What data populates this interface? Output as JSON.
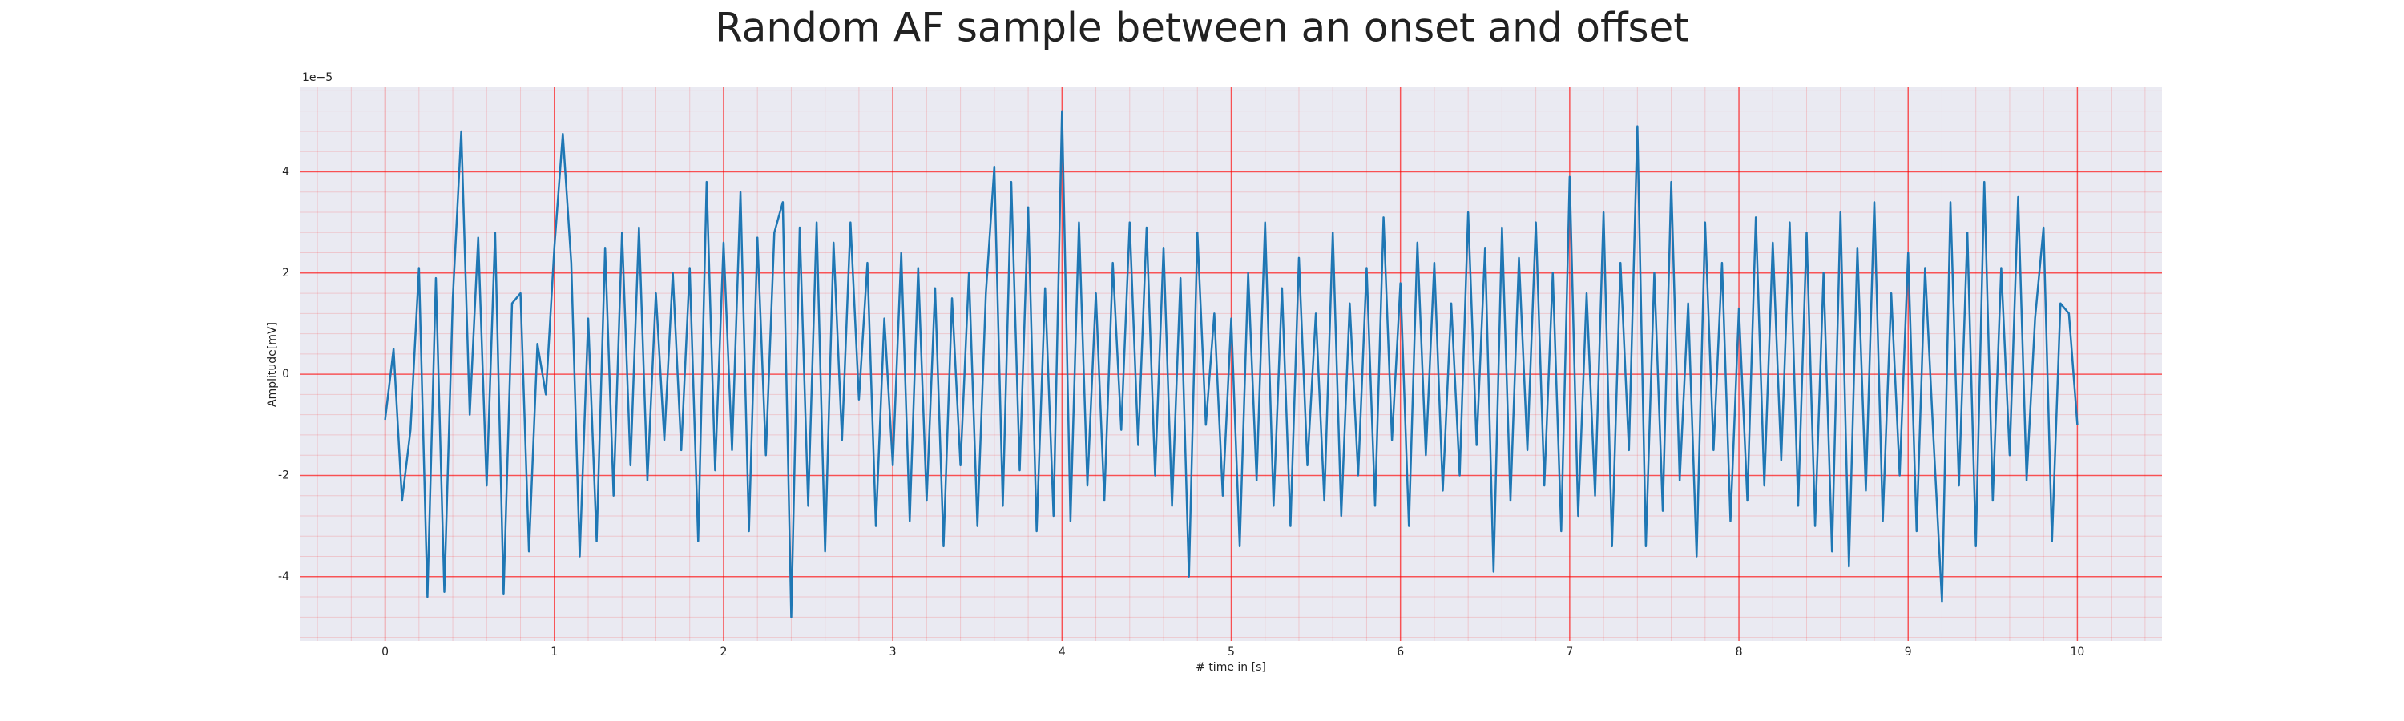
{
  "chart_data": {
    "type": "line",
    "title": "Random AF sample between an onset and offset",
    "xlabel": "# time in [s]",
    "ylabel": "Amplitude[mV]",
    "y_offset_label": "1e−5",
    "color": "#1f77b4",
    "grid": true,
    "grid_color": "#ff0000",
    "minor_grid": true,
    "xlim": [
      -0.5,
      10.5
    ],
    "xticks": [
      0,
      1,
      2,
      3,
      4,
      5,
      6,
      7,
      8,
      9,
      10
    ],
    "ylim": [
      -5.27,
      5.67
    ],
    "yticks": [
      -4,
      -2,
      0,
      2,
      4
    ],
    "x": [
      0,
      0.05,
      0.1,
      0.15,
      0.2,
      0.25,
      0.3,
      0.35,
      0.4,
      0.45,
      0.5,
      0.55,
      0.6,
      0.65,
      0.7,
      0.75,
      0.8,
      0.85,
      0.9,
      0.95,
      1,
      1.05,
      1.1,
      1.15,
      1.2,
      1.25,
      1.3,
      1.35,
      1.4,
      1.45,
      1.5,
      1.55,
      1.6,
      1.65,
      1.7,
      1.75,
      1.8,
      1.85,
      1.9,
      1.95,
      2,
      2.05,
      2.1,
      2.15,
      2.2,
      2.25,
      2.3,
      2.35,
      2.4,
      2.45,
      2.5,
      2.55,
      2.6,
      2.65,
      2.7,
      2.75,
      2.8,
      2.85,
      2.9,
      2.95,
      3,
      3.05,
      3.1,
      3.15,
      3.2,
      3.25,
      3.3,
      3.35,
      3.4,
      3.45,
      3.5,
      3.55,
      3.6,
      3.65,
      3.7,
      3.75,
      3.8,
      3.85,
      3.9,
      3.95,
      4,
      4.05,
      4.1,
      4.15,
      4.2,
      4.25,
      4.3,
      4.35,
      4.4,
      4.45,
      4.5,
      4.55,
      4.6,
      4.65,
      4.7,
      4.75,
      4.8,
      4.85,
      4.9,
      4.95,
      5,
      5.05,
      5.1,
      5.15,
      5.2,
      5.25,
      5.3,
      5.35,
      5.4,
      5.45,
      5.5,
      5.55,
      5.6,
      5.65,
      5.7,
      5.75,
      5.8,
      5.85,
      5.9,
      5.95,
      6,
      6.05,
      6.1,
      6.15,
      6.2,
      6.25,
      6.3,
      6.35,
      6.4,
      6.45,
      6.5,
      6.55,
      6.6,
      6.65,
      6.7,
      6.75,
      6.8,
      6.85,
      6.9,
      6.95,
      7,
      7.05,
      7.1,
      7.15,
      7.2,
      7.25,
      7.3,
      7.35,
      7.4,
      7.45,
      7.5,
      7.55,
      7.6,
      7.65,
      7.7,
      7.75,
      7.8,
      7.85,
      7.9,
      7.95,
      8,
      8.05,
      8.1,
      8.15,
      8.2,
      8.25,
      8.3,
      8.35,
      8.4,
      8.45,
      8.5,
      8.55,
      8.6,
      8.65,
      8.7,
      8.75,
      8.8,
      8.85,
      8.9,
      8.95,
      9,
      9.05,
      9.1,
      9.15,
      9.2,
      9.25,
      9.3,
      9.35,
      9.4,
      9.45,
      9.5,
      9.55,
      9.6,
      9.65,
      9.7,
      9.75,
      9.8,
      9.85,
      9.9,
      9.95,
      10
    ],
    "values": [
      -0.9,
      0.5,
      -2.5,
      -1.1,
      2.1,
      -4.4,
      1.9,
      -4.3,
      1.5,
      4.8,
      -0.8,
      2.7,
      -2.2,
      2.8,
      -4.35,
      1.4,
      1.6,
      -3.5,
      0.6,
      -0.4,
      2.5,
      4.75,
      2.2,
      -3.6,
      1.1,
      -3.3,
      2.5,
      -2.4,
      2.8,
      -1.8,
      2.9,
      -2.1,
      1.6,
      -1.3,
      2.0,
      -1.5,
      2.1,
      -3.3,
      3.8,
      -1.9,
      2.6,
      -1.5,
      3.6,
      -3.1,
      2.7,
      -1.6,
      2.8,
      3.4,
      -4.8,
      2.9,
      -2.6,
      3.0,
      -3.5,
      2.6,
      -1.3,
      3.0,
      -0.5,
      2.2,
      -3.0,
      1.1,
      -1.8,
      2.4,
      -2.9,
      2.1,
      -2.5,
      1.7,
      -3.4,
      1.5,
      -1.8,
      2.0,
      -3.0,
      1.6,
      4.1,
      -2.6,
      3.8,
      -1.9,
      3.3,
      -3.1,
      1.7,
      -2.8,
      5.2,
      -2.9,
      3.0,
      -2.2,
      1.6,
      -2.5,
      2.2,
      -1.1,
      3.0,
      -1.4,
      2.9,
      -2.0,
      2.5,
      -2.6,
      1.9,
      -4.0,
      2.8,
      -1.0,
      1.2,
      -2.4,
      1.1,
      -3.4,
      2.0,
      -2.1,
      3.0,
      -2.6,
      1.7,
      -3.0,
      2.3,
      -1.8,
      1.2,
      -2.5,
      2.8,
      -2.8,
      1.4,
      -2.0,
      2.1,
      -2.6,
      3.1,
      -1.3,
      1.8,
      -3.0,
      2.6,
      -1.6,
      2.2,
      -2.3,
      1.4,
      -2.0,
      3.2,
      -1.4,
      2.5,
      -3.9,
      2.9,
      -2.5,
      2.3,
      -1.5,
      3.0,
      -2.2,
      2.0,
      -3.1,
      3.9,
      -2.8,
      1.6,
      -2.4,
      3.2,
      -3.4,
      2.2,
      -1.5,
      4.9,
      -3.4,
      2.0,
      -2.7,
      3.8,
      -2.1,
      1.4,
      -3.6,
      3.0,
      -1.5,
      2.2,
      -2.9,
      1.3,
      -2.5,
      3.1,
      -2.2,
      2.6,
      -1.7,
      3.0,
      -2.6,
      2.8,
      -3.0,
      2.0,
      -3.5,
      3.2,
      -3.8,
      2.5,
      -2.3,
      3.4,
      -2.9,
      1.6,
      -2.0,
      2.4,
      -3.1,
      2.1,
      -1.3,
      -4.5,
      3.4,
      -2.2,
      2.8,
      -3.4,
      3.8,
      -2.5,
      2.1,
      -1.6,
      3.5,
      -2.1,
      1.1,
      2.9,
      -3.3,
      1.4,
      1.2,
      -1.0
    ]
  }
}
